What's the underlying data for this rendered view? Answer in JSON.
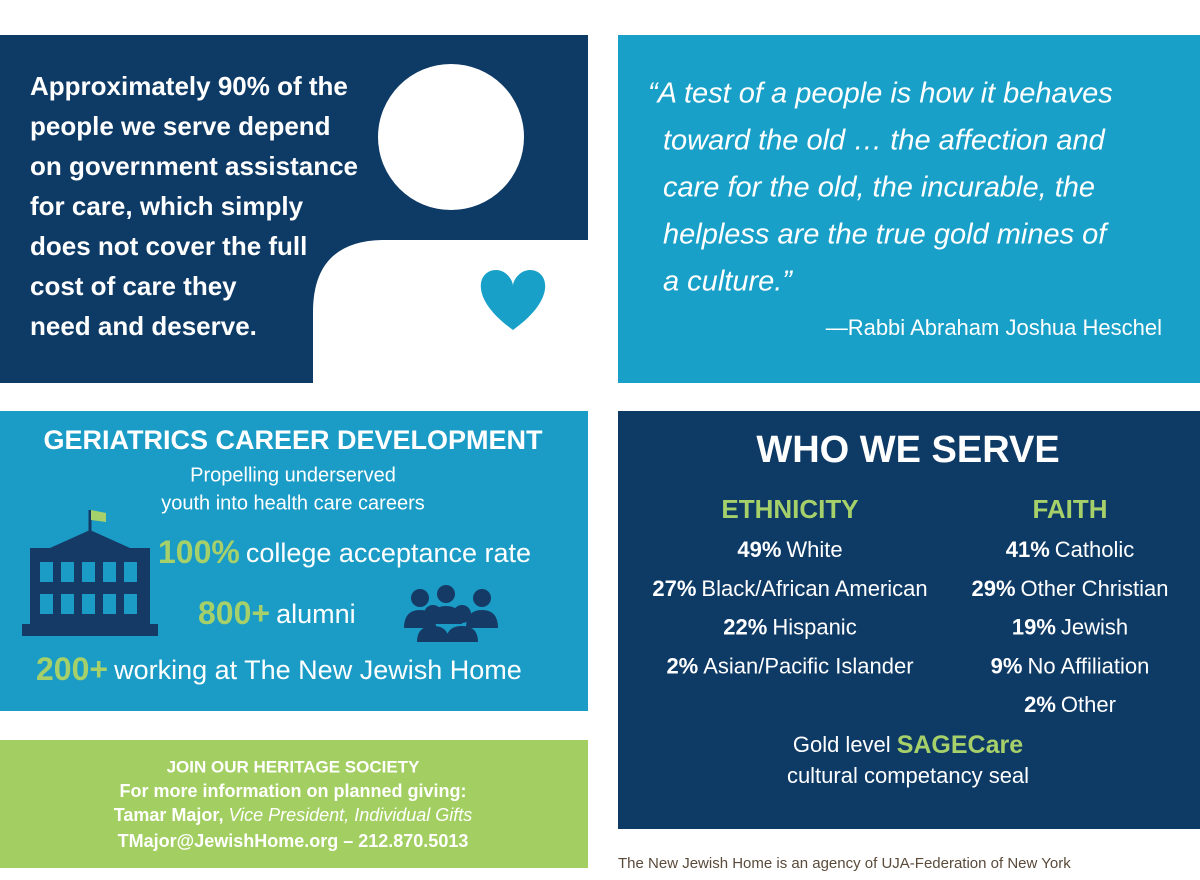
{
  "panel_assistance": {
    "lines": [
      "Approximately 90% of the",
      "people we serve depend",
      "on government assistance",
      "for care, which simply",
      "does not cover the full",
      "cost of care they",
      "need and deserve."
    ]
  },
  "quote": {
    "lines": [
      "“A test of a people is how it behaves",
      "toward the old … the affection and",
      "care for the old, the incurable, the",
      "helpless are the true gold mines of",
      "a culture.”"
    ],
    "attribution": "—Rabbi Abraham Joshua Heschel"
  },
  "career": {
    "title": "GERIATRICS CAREER DEVELOPMENT",
    "subtitle": [
      "Propelling underserved",
      "youth into health care careers"
    ],
    "stats": [
      {
        "figure": "100%",
        "text": "college acceptance rate"
      },
      {
        "figure": "800+",
        "text": "alumni"
      },
      {
        "figure": "200+",
        "text": "working at The New Jewish Home"
      }
    ]
  },
  "who_we_serve": {
    "title": "WHO WE SERVE",
    "ethnicity": {
      "heading": "ETHNICITY",
      "items": [
        {
          "pct": "49%",
          "label": "White"
        },
        {
          "pct": "27%",
          "label": "Black/African American"
        },
        {
          "pct": "22%",
          "label": "Hispanic"
        },
        {
          "pct": "2%",
          "label": "Asian/Pacific Islander"
        }
      ]
    },
    "faith": {
      "heading": "FAITH",
      "items": [
        {
          "pct": "41%",
          "label": "Catholic"
        },
        {
          "pct": "29%",
          "label": "Other Christian"
        },
        {
          "pct": "19%",
          "label": "Jewish"
        },
        {
          "pct": "9%",
          "label": "No Affiliation"
        },
        {
          "pct": "2%",
          "label": "Other"
        }
      ]
    },
    "seal": {
      "prefix": "Gold level",
      "highlight": "SAGECare",
      "line2": "cultural competancy seal"
    }
  },
  "heritage": {
    "title": "JOIN OUR HERITAGE SOCIETY",
    "line1": "For more information on planned giving:",
    "name": "Tamar Major,",
    "role": "Vice President, Individual Gifts",
    "contact": "TMajor@JewishHome.org – 212.870.5013"
  },
  "footer": "The New Jewish Home is an agency of UJA-Federation of New York"
}
